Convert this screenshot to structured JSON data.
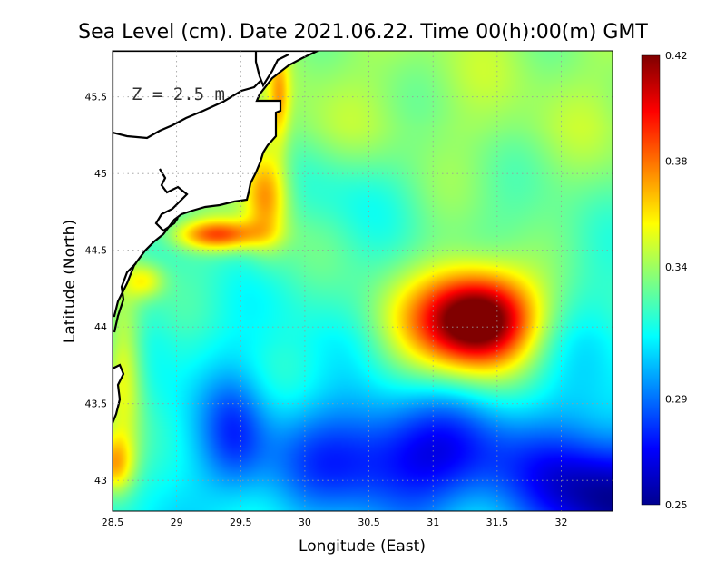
{
  "chart_data": {
    "type": "heatmap",
    "title": "Sea Level (cm). Date 2021.06.22. Time 00(h):00(m) GMT",
    "xlabel": "Longitude (East)",
    "ylabel": "Latitude (North)",
    "annotation": "Z = 2.5 m",
    "xlim": [
      28.5,
      32.4
    ],
    "ylim": [
      42.8,
      45.8
    ],
    "xticks": [
      "28.5",
      "29",
      "29.5",
      "30",
      "30.5",
      "31",
      "31.5",
      "32"
    ],
    "yticks": [
      "43",
      "43.5",
      "44",
      "44.5",
      "45",
      "45.5"
    ],
    "grid": true,
    "colorbar": {
      "min": 0.25,
      "max": 0.42,
      "ticks": [
        "0.42",
        "0.38",
        "0.34",
        "0.29",
        "0.25"
      ],
      "colormap": "jet"
    },
    "features": [
      {
        "kind": "maximum",
        "lon": 31.4,
        "lat": 44.05,
        "value": 0.42
      },
      {
        "kind": "maximum",
        "lon": 29.35,
        "lat": 44.6,
        "value": 0.39
      },
      {
        "kind": "coastal_maximum",
        "lon": 28.55,
        "lat": 43.2,
        "value": 0.38
      },
      {
        "kind": "minimum",
        "lon": 32.3,
        "lat": 43.0,
        "value": 0.25
      }
    ]
  }
}
